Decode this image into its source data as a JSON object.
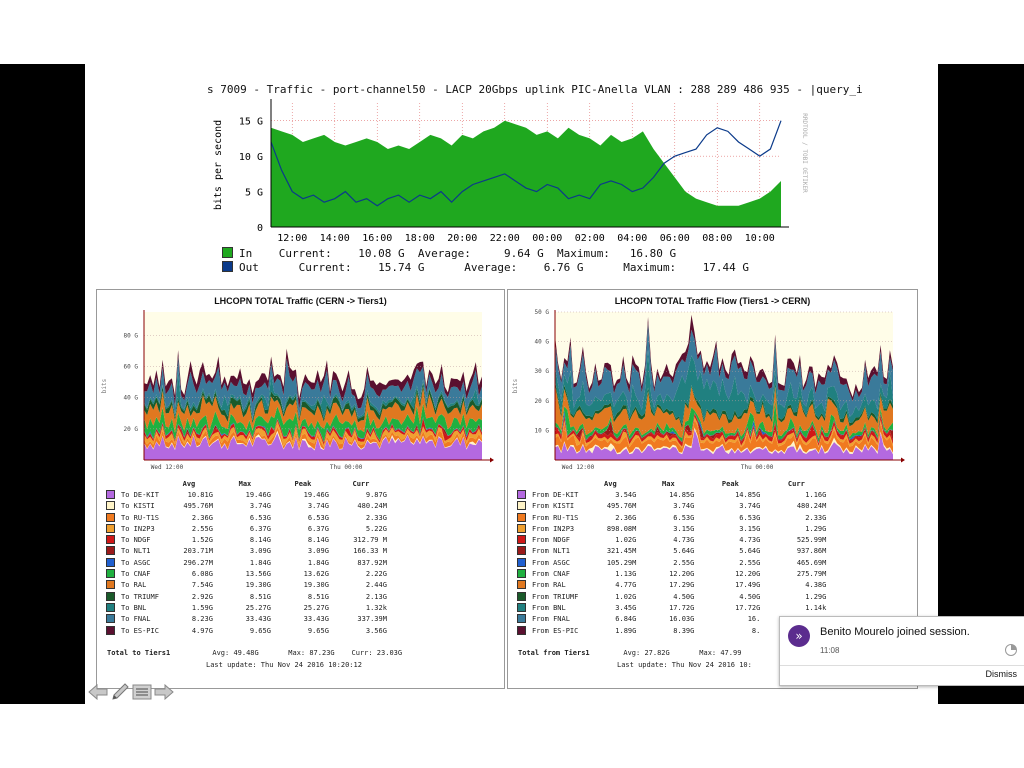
{
  "top_chart": {
    "title": "s 7009 - Traffic - port-channel50 - LACP 20Gbps uplink PIC-Anella VLAN : 288 289 486 935 - |query_i",
    "side_label": "RRDTOOL / TOBI OETIKER",
    "legend": {
      "in": {
        "name": "In",
        "current_label": "Current:",
        "current": "10.08 G",
        "average_label": "Average:",
        "average": "9.64 G",
        "maximum_label": "Maximum:",
        "maximum": "16.80 G"
      },
      "out": {
        "name": "Out",
        "current_label": "Current:",
        "current": "15.74 G",
        "average_label": "Average:",
        "average": "6.76 G",
        "maximum_label": "Maximum:",
        "maximum": "17.44 G"
      }
    }
  },
  "left_panel": {
    "title": "LHCOPN TOTAL Traffic (CERN -> Tiers1)",
    "headers": [
      "Avg",
      "Max",
      "Peak",
      "Curr"
    ],
    "rows": [
      {
        "label": "To DE-KIT",
        "avg": "10.81G",
        "max": "19.46G",
        "peak": "19.46G",
        "curr": "9.87G",
        "color": "#b469e0"
      },
      {
        "label": "To KISTI",
        "avg": "495.76M",
        "max": "3.74G",
        "peak": "3.74G",
        "curr": "480.24M",
        "color": "#fff4c8"
      },
      {
        "label": "To RU-T1S",
        "avg": "2.36G",
        "max": "6.53G",
        "peak": "6.53G",
        "curr": "2.33G",
        "color": "#f07a20"
      },
      {
        "label": "To IN2P3",
        "avg": "2.55G",
        "max": "6.37G",
        "peak": "6.37G",
        "curr": "5.22G",
        "color": "#f0a030"
      },
      {
        "label": "To NDGF",
        "avg": "1.52G",
        "max": "8.14G",
        "peak": "8.14G",
        "curr": "312.79 M",
        "color": "#d01818"
      },
      {
        "label": "To NLT1",
        "avg": "203.71M",
        "max": "3.09G",
        "peak": "3.09G",
        "curr": "166.33 M",
        "color": "#9a1a1a"
      },
      {
        "label": "To ASGC",
        "avg": "296.27M",
        "max": "1.84G",
        "peak": "1.84G",
        "curr": "837.92M",
        "color": "#2060d0"
      },
      {
        "label": "To CNAF",
        "avg": "6.08G",
        "max": "13.56G",
        "peak": "13.62G",
        "curr": "2.22G",
        "color": "#20b040"
      },
      {
        "label": "To RAL",
        "avg": "7.54G",
        "max": "19.30G",
        "peak": "19.30G",
        "curr": "2.44G",
        "color": "#e07820"
      },
      {
        "label": "To TRIUMF",
        "avg": "2.92G",
        "max": "8.51G",
        "peak": "8.51G",
        "curr": "2.13G",
        "color": "#1a5a2a"
      },
      {
        "label": "To BNL",
        "avg": "1.59G",
        "max": "25.27G",
        "peak": "25.27G",
        "curr": "1.32k",
        "color": "#208080"
      },
      {
        "label": "To FNAL",
        "avg": "8.23G",
        "max": "33.43G",
        "peak": "33.43G",
        "curr": "337.39M",
        "color": "#3a7a9a"
      },
      {
        "label": "To ES-PIC",
        "avg": "4.97G",
        "max": "9.65G",
        "peak": "9.65G",
        "curr": "3.56G",
        "color": "#5a1030"
      }
    ],
    "total": {
      "label": "Total to Tiers1",
      "avg_label": "Avg:",
      "avg": "49.48G",
      "max_label": "Max:",
      "max": "87.23G",
      "curr_label": "Curr:",
      "curr": "23.03G"
    },
    "last_update": "Last update: Thu Nov 24 2016 10:20:12"
  },
  "right_panel": {
    "title": "LHCOPN TOTAL Traffic Flow (Tiers1 -> CERN)",
    "headers": [
      "Avg",
      "Max",
      "Peak",
      "Curr"
    ],
    "rows": [
      {
        "label": "From DE-KIT",
        "avg": "3.54G",
        "max": "14.85G",
        "peak": "14.85G",
        "curr": "1.16G",
        "color": "#b469e0"
      },
      {
        "label": "From KISTI",
        "avg": "495.76M",
        "max": "3.74G",
        "peak": "3.74G",
        "curr": "480.24M",
        "color": "#fff4c8"
      },
      {
        "label": "From RU-T1S",
        "avg": "2.36G",
        "max": "6.53G",
        "peak": "6.53G",
        "curr": "2.33G",
        "color": "#f07a20"
      },
      {
        "label": "From IN2P3",
        "avg": "898.08M",
        "max": "3.15G",
        "peak": "3.15G",
        "curr": "1.29G",
        "color": "#f0a030"
      },
      {
        "label": "From NDGF",
        "avg": "1.02G",
        "max": "4.73G",
        "peak": "4.73G",
        "curr": "525.99M",
        "color": "#d01818"
      },
      {
        "label": "From NLT1",
        "avg": "321.45M",
        "max": "5.64G",
        "peak": "5.64G",
        "curr": "937.86M",
        "color": "#9a1a1a"
      },
      {
        "label": "From ASGC",
        "avg": "105.29M",
        "max": "2.55G",
        "peak": "2.55G",
        "curr": "465.69M",
        "color": "#2060d0"
      },
      {
        "label": "From CNAF",
        "avg": "1.13G",
        "max": "12.20G",
        "peak": "12.20G",
        "curr": "275.79M",
        "color": "#20b040"
      },
      {
        "label": "From RAL",
        "avg": "4.77G",
        "max": "17.29G",
        "peak": "17.49G",
        "curr": "4.38G",
        "color": "#e07820"
      },
      {
        "label": "From TRIUMF",
        "avg": "1.02G",
        "max": "4.50G",
        "peak": "4.50G",
        "curr": "1.29G",
        "color": "#1a5a2a"
      },
      {
        "label": "From BNL",
        "avg": "3.45G",
        "max": "17.72G",
        "peak": "17.72G",
        "curr": "1.14k",
        "color": "#208080"
      },
      {
        "label": "From FNAL",
        "avg": "6.84G",
        "max": "16.03G",
        "peak": "16.",
        "curr": "",
        "color": "#3a7a9a"
      },
      {
        "label": "From ES-PIC",
        "avg": "1.89G",
        "max": "8.39G",
        "peak": "8.",
        "curr": "",
        "color": "#5a1030"
      }
    ],
    "total": {
      "label": "Total from Tiers1",
      "avg_label": "Avg:",
      "avg": "27.82G",
      "max_label": "Max:",
      "max": "47.99",
      "curr_label": "",
      "curr": ""
    },
    "last_update": "Last update: Thu Nov 24 2016 10:"
  },
  "toast": {
    "message": "Benito Mourelo joined session.",
    "time": "11:08",
    "dismiss": "Dismiss",
    "icon": "forward-chevron-icon"
  },
  "nav": {
    "icons": [
      "back-arrow-icon",
      "pen-icon",
      "menu-icon",
      "forward-arrow-icon"
    ]
  },
  "colors": {
    "in": "#1fa81f",
    "out": "#0b3a8a",
    "plot_bg": "#fffde8",
    "accent": "#5b2c8e"
  },
  "chart_data": [
    {
      "type": "area",
      "title": "s 7009 - Traffic - port-channel50 - LACP 20Gbps uplink PIC-Anella VLAN : 288 289 486 935 - |query_i",
      "ylabel": "bits per second",
      "yticks": [
        "0",
        "5 G",
        "10 G",
        "15 G"
      ],
      "xticks": [
        "12:00",
        "14:00",
        "16:00",
        "18:00",
        "20:00",
        "22:00",
        "00:00",
        "02:00",
        "04:00",
        "06:00",
        "08:00",
        "10:00"
      ],
      "ylim": [
        0,
        17.5
      ],
      "x": [
        11,
        11.5,
        12,
        12.5,
        13,
        13.5,
        14,
        14.5,
        15,
        15.5,
        16,
        16.5,
        17,
        17.5,
        18,
        18.5,
        19,
        19.5,
        20,
        20.5,
        21,
        21.5,
        22,
        22.5,
        23,
        23.5,
        24,
        24.5,
        25,
        25.5,
        26,
        26.5,
        27,
        27.5,
        28,
        28.5,
        29,
        29.5,
        30,
        30.5,
        31,
        31.5,
        32,
        32.5,
        33,
        33.5,
        34,
        34.5,
        35
      ],
      "series": [
        {
          "name": "In",
          "type": "area",
          "values": [
            14,
            13.5,
            13,
            12,
            12.5,
            13,
            12,
            11.5,
            12,
            12.5,
            12,
            11,
            11.5,
            11,
            12,
            13,
            12.5,
            11.5,
            13,
            12.5,
            13.5,
            14,
            15,
            14.5,
            14,
            13,
            13.5,
            12.5,
            14,
            13,
            12.5,
            11.5,
            13,
            12,
            12.5,
            13.5,
            11,
            9,
            7,
            5,
            4,
            3.5,
            3,
            3,
            3,
            3.5,
            4,
            5,
            6.5
          ]
        },
        {
          "name": "Out",
          "type": "line",
          "values": [
            12,
            8,
            5,
            4,
            4.5,
            3.5,
            4,
            5,
            3.5,
            4,
            3,
            4,
            4.5,
            3.5,
            4.5,
            4,
            5,
            3.5,
            5,
            6,
            6.5,
            7,
            7.5,
            6.5,
            5.5,
            5,
            6,
            5.5,
            4,
            4.5,
            4,
            6,
            6.5,
            6,
            5,
            5.5,
            7,
            9,
            10,
            10.5,
            11,
            13,
            14,
            13.5,
            12,
            11,
            10,
            11,
            15
          ]
        }
      ]
    },
    {
      "type": "area",
      "title": "LHCOPN TOTAL Traffic (CERN -> Tiers1)",
      "ylabel": "bits",
      "yticks": [
        "20 G",
        "40 G",
        "60 G",
        "80 G"
      ],
      "xticks": [
        "Wed 12:00",
        "Thu 00:00"
      ],
      "ylim": [
        0,
        95
      ],
      "series_names": [
        "To DE-KIT",
        "To KISTI",
        "To RU-T1S",
        "To IN2P3",
        "To NDGF",
        "To NLT1",
        "To ASGC",
        "To CNAF",
        "To RAL",
        "To TRIUMF",
        "To BNL",
        "To FNAL",
        "To ES-PIC"
      ],
      "avg": [
        10.81,
        0.49576,
        2.36,
        2.55,
        1.52,
        0.20371,
        0.29627,
        6.08,
        7.54,
        2.92,
        1.59,
        8.23,
        4.97
      ],
      "max": [
        19.46,
        3.74,
        6.53,
        6.37,
        8.14,
        3.09,
        1.84,
        13.56,
        19.3,
        8.51,
        25.27,
        33.43,
        9.65
      ]
    },
    {
      "type": "area",
      "title": "LHCOPN TOTAL Traffic Flow (Tiers1 -> CERN)",
      "ylabel": "bits",
      "yticks": [
        "10 G",
        "20 G",
        "30 G",
        "40 G",
        "50 G"
      ],
      "xticks": [
        "Wed 12:00",
        "Thu 00:00"
      ],
      "ylim": [
        0,
        50
      ],
      "series_names": [
        "From DE-KIT",
        "From KISTI",
        "From RU-T1S",
        "From IN2P3",
        "From NDGF",
        "From NLT1",
        "From ASGC",
        "From CNAF",
        "From RAL",
        "From TRIUMF",
        "From BNL",
        "From FNAL",
        "From ES-PIC"
      ],
      "avg": [
        3.54,
        0.49576,
        2.36,
        0.89808,
        1.02,
        0.32145,
        0.10529,
        1.13,
        4.77,
        1.02,
        3.45,
        6.84,
        1.89
      ],
      "max": [
        14.85,
        3.74,
        6.53,
        3.15,
        4.73,
        5.64,
        2.55,
        12.2,
        17.29,
        4.5,
        17.72,
        16.03,
        8.39
      ]
    }
  ]
}
